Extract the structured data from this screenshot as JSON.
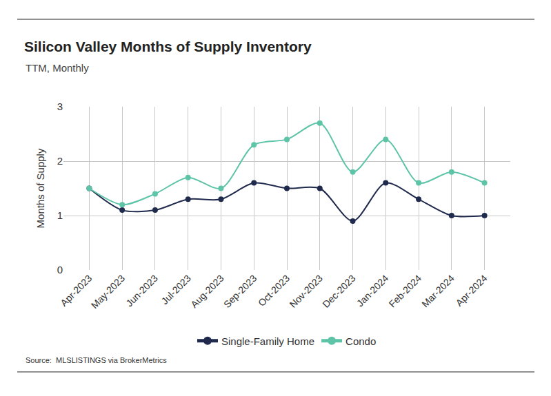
{
  "chart_data": {
    "type": "line",
    "title": "Silicon Valley Months of Supply Inventory",
    "subtitle": "TTM, Monthly",
    "y_label": "Months of Supply",
    "source": "Source:  MLSLISTINGS via BrokerMetrics",
    "categories": [
      "Apr-2023",
      "May-2023",
      "Jun-2023",
      "Jul-2023",
      "Aug-2023",
      "Sep-2023",
      "Oct-2023",
      "Nov-2023",
      "Dec-2023",
      "Jan-2024",
      "Feb-2024",
      "Mar-2024",
      "Apr-2024"
    ],
    "series": [
      {
        "name": "Single-Family Home",
        "color": "#1f2a4d",
        "values": [
          1.5,
          1.1,
          1.1,
          1.3,
          1.3,
          1.6,
          1.5,
          1.5,
          0.9,
          1.6,
          1.3,
          1.0,
          1.0
        ]
      },
      {
        "name": "Condo",
        "color": "#5ec4a8",
        "values": [
          1.5,
          1.2,
          1.4,
          1.7,
          1.5,
          2.3,
          2.4,
          2.7,
          1.8,
          2.4,
          1.6,
          1.8,
          1.6
        ]
      }
    ],
    "ylim": [
      0,
      3
    ],
    "yticks": [
      0,
      1,
      2,
      3
    ],
    "grid": true,
    "legend": "bottom",
    "marker": "circle",
    "line_style": "solid"
  }
}
